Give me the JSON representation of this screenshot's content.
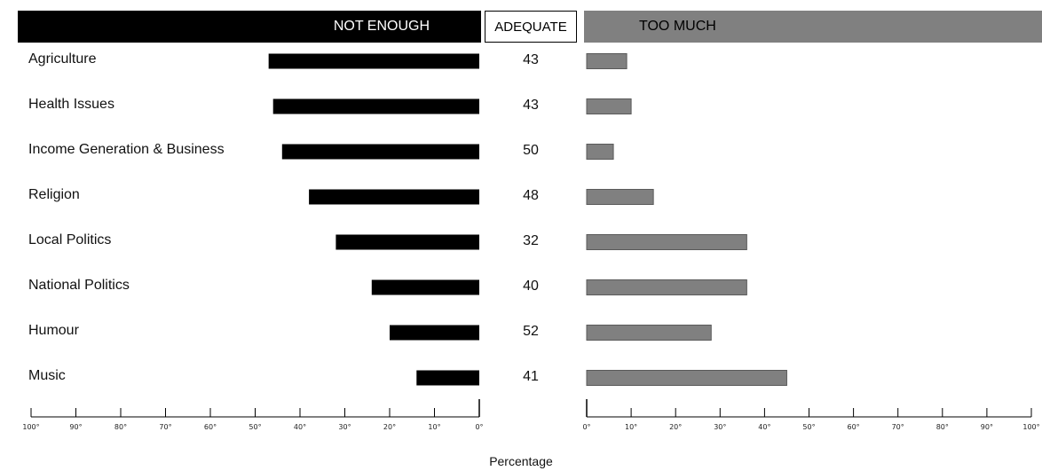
{
  "headers": {
    "not_enough": "NOT ENOUGH",
    "adequate": "ADEQUATE",
    "too_much": "TOO MUCH"
  },
  "xlabel": "Percentage",
  "colors": {
    "not_enough": "#000000",
    "too_much": "#808080"
  },
  "chart_data": {
    "type": "bar",
    "categories": [
      "Agriculture",
      "Health Issues",
      "Income Generation & Business",
      "Religion",
      "Local Politics",
      "National Politics",
      "Humour",
      "Music"
    ],
    "series": [
      {
        "name": "NOT ENOUGH",
        "values": [
          47,
          46,
          44,
          38,
          32,
          24,
          20,
          14
        ]
      },
      {
        "name": "ADEQUATE",
        "values": [
          43,
          43,
          50,
          48,
          32,
          40,
          52,
          41
        ]
      },
      {
        "name": "TOO MUCH",
        "values": [
          9,
          10,
          6,
          15,
          36,
          36,
          28,
          45
        ]
      }
    ],
    "left_ticks": [
      "100",
      "90",
      "80",
      "70",
      "60",
      "50",
      "40",
      "30",
      "20",
      "10",
      "0"
    ],
    "right_ticks": [
      "0",
      "10",
      "20",
      "30",
      "40",
      "50",
      "60",
      "70",
      "80",
      "90",
      "100"
    ],
    "xlim": [
      0,
      100
    ],
    "xlabel": "Percentage"
  }
}
